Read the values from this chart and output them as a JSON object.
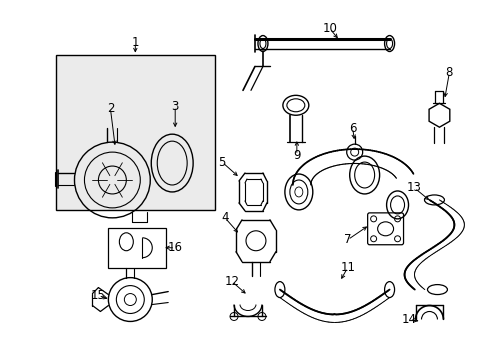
{
  "background_color": "#ffffff",
  "line_color": "#000000",
  "text_color": "#000000",
  "label_fontsize": 8.5,
  "fig_width": 4.89,
  "fig_height": 3.6,
  "dpi": 100
}
